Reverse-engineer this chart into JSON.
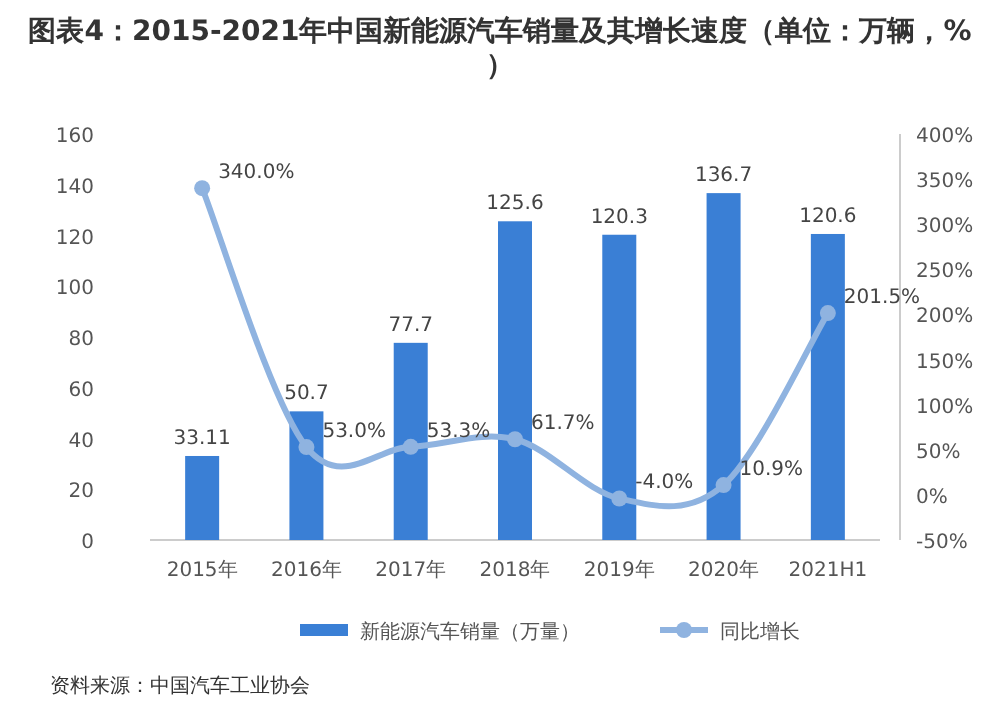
{
  "chart_data": {
    "type": "bar",
    "title": "图表4：2015-2021年中国新能源汽车销量及其增长速度（单位：万辆，%）",
    "categories": [
      "2015年",
      "2016年",
      "2017年",
      "2018年",
      "2019年",
      "2020年",
      "2021H1"
    ],
    "series": [
      {
        "name": "新能源汽车销量（万量）",
        "color": "#3a7fd5",
        "values": [
          33.11,
          50.7,
          77.7,
          125.6,
          120.3,
          136.7,
          120.6
        ],
        "value_labels": [
          "33.11",
          "50.7",
          "77.7",
          "125.6",
          "120.3",
          "136.7",
          "120.6"
        ]
      },
      {
        "name": "同比增长",
        "type": "line",
        "axis": "y2",
        "color": "#8fb3e0",
        "marker": "circle",
        "values": [
          340.0,
          53.0,
          53.3,
          61.7,
          -4.0,
          10.9,
          201.5
        ],
        "value_labels": [
          "340.0%",
          "53.0%",
          "53.3%",
          "61.7%",
          "-4.0%",
          "10.9%",
          "201.5%"
        ]
      }
    ],
    "ylim": [
      0,
      160
    ],
    "yticks": [
      0,
      20,
      40,
      60,
      80,
      100,
      120,
      140,
      160
    ],
    "y2lim": [
      -50,
      400
    ],
    "y2ticks": [
      {
        "value": -50,
        "label": "-50%"
      },
      {
        "value": 0,
        "label": "0%"
      },
      {
        "value": 50,
        "label": "50%"
      },
      {
        "value": 100,
        "label": "100%"
      },
      {
        "value": 150,
        "label": "150%"
      },
      {
        "value": 200,
        "label": "200%"
      },
      {
        "value": 250,
        "label": "250%"
      },
      {
        "value": 300,
        "label": "300%"
      },
      {
        "value": 350,
        "label": "350%"
      },
      {
        "value": 400,
        "label": "400%"
      }
    ],
    "legend": "bottom",
    "annotations": [
      "资料来源：中国汽车工业协会"
    ]
  }
}
